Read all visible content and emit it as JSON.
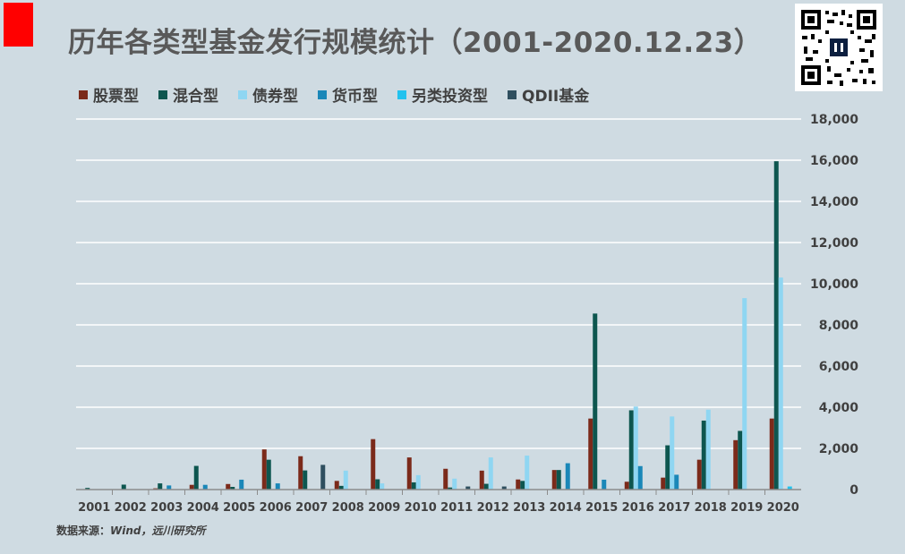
{
  "title": "历年各类型基金发行规模统计（2001-2020.12.23）",
  "source": {
    "prefix": "数据来源：",
    "body": "Wind，远川研究所"
  },
  "colors": {
    "stock": "#7b2a1a",
    "mixed": "#0d564f",
    "bond": "#8fd6f2",
    "money": "#1a87b8",
    "alt": "#22c2ee",
    "qdii": "#2f4f5f",
    "background": "#cfdbe2",
    "grid": "#ffffff",
    "brand_red": "#ff0000"
  },
  "chart_data": {
    "type": "bar",
    "title": "历年各类型基金发行规模统计（2001-2020.12.23）",
    "categories": [
      "2001",
      "2002",
      "2003",
      "2004",
      "2005",
      "2006",
      "2007",
      "2008",
      "2009",
      "2010",
      "2011",
      "2012",
      "2013",
      "2014",
      "2015",
      "2016",
      "2017",
      "2018",
      "2019",
      "2020"
    ],
    "series": [
      {
        "name": "股票型",
        "color": "#7b2a1a",
        "values": [
          0,
          0,
          60,
          230,
          270,
          1950,
          1620,
          420,
          2450,
          1560,
          1010,
          920,
          490,
          950,
          3450,
          380,
          580,
          1450,
          2400,
          3450
        ]
      },
      {
        "name": "混合型",
        "color": "#0d564f",
        "values": [
          80,
          240,
          300,
          1150,
          130,
          1450,
          930,
          180,
          500,
          350,
          100,
          280,
          420,
          950,
          8550,
          3850,
          2150,
          3350,
          2850,
          15950
        ]
      },
      {
        "name": "债券型",
        "color": "#8fd6f2",
        "values": [
          0,
          0,
          0,
          0,
          0,
          0,
          0,
          920,
          300,
          700,
          530,
          1560,
          1650,
          0,
          0,
          4030,
          3550,
          3880,
          9300,
          10300
        ]
      },
      {
        "name": "货币型",
        "color": "#1a87b8",
        "values": [
          0,
          0,
          200,
          230,
          480,
          300,
          0,
          0,
          0,
          0,
          0,
          0,
          0,
          1280,
          480,
          1140,
          720,
          0,
          0,
          0
        ]
      },
      {
        "name": "另类投资型",
        "color": "#22c2ee",
        "values": [
          0,
          0,
          0,
          0,
          0,
          0,
          0,
          0,
          0,
          0,
          0,
          0,
          0,
          0,
          0,
          0,
          0,
          0,
          0,
          150
        ]
      },
      {
        "name": "QDII基金",
        "color": "#2f4f5f",
        "values": [
          0,
          0,
          0,
          0,
          0,
          0,
          1200,
          0,
          0,
          0,
          150,
          150,
          0,
          0,
          0,
          0,
          0,
          0,
          0,
          0
        ]
      }
    ],
    "xlabel": "",
    "ylabel": "",
    "ylim": [
      0,
      18000
    ],
    "yticks": [
      0,
      2000,
      4000,
      6000,
      8000,
      10000,
      12000,
      14000,
      16000,
      18000
    ],
    "ytick_labels": [
      "0",
      "2,000",
      "4,000",
      "6,000",
      "8,000",
      "10,000",
      "12,000",
      "14,000",
      "16,000",
      "18,000"
    ],
    "y_axis_side": "right",
    "grid": true,
    "legend_position": "top-left"
  }
}
